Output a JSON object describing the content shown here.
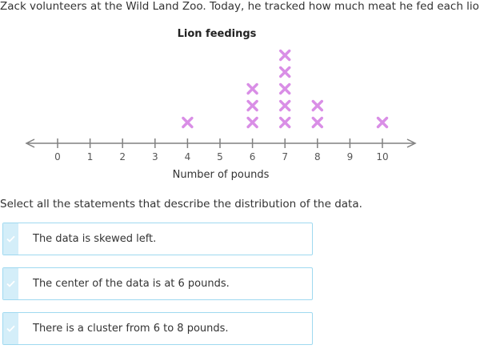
{
  "question": {
    "intro": "Zack volunteers at the Wild Land Zoo. Today, he tracked how much meat he fed each lion.",
    "prompt": "Select all the statements that describe the distribution of the data."
  },
  "chart_data": {
    "type": "scatter",
    "title": "Lion feedings",
    "xlabel": "Number of pounds",
    "ylabel": "",
    "xlim": [
      0,
      10
    ],
    "ticks": [
      "0",
      "1",
      "2",
      "3",
      "4",
      "5",
      "6",
      "7",
      "8",
      "9",
      "10"
    ],
    "counts": [
      {
        "x": 4,
        "count": 1
      },
      {
        "x": 6,
        "count": 3
      },
      {
        "x": 7,
        "count": 5
      },
      {
        "x": 8,
        "count": 2
      },
      {
        "x": 10,
        "count": 1
      }
    ],
    "marker": "x",
    "marker_color": "#d98ee6",
    "axis_color": "#808080",
    "grid": false
  },
  "choices": [
    {
      "label": "The data is skewed left.",
      "icon": "check-icon"
    },
    {
      "label": "The center of the data is at 6 pounds.",
      "icon": "check-icon"
    },
    {
      "label": "There is a cluster from 6 to 8 pounds.",
      "icon": "check-icon"
    }
  ],
  "colors": {
    "choice_border": "#9fd9f0",
    "choice_tab": "#d4eef9",
    "check": "#ffffff"
  }
}
